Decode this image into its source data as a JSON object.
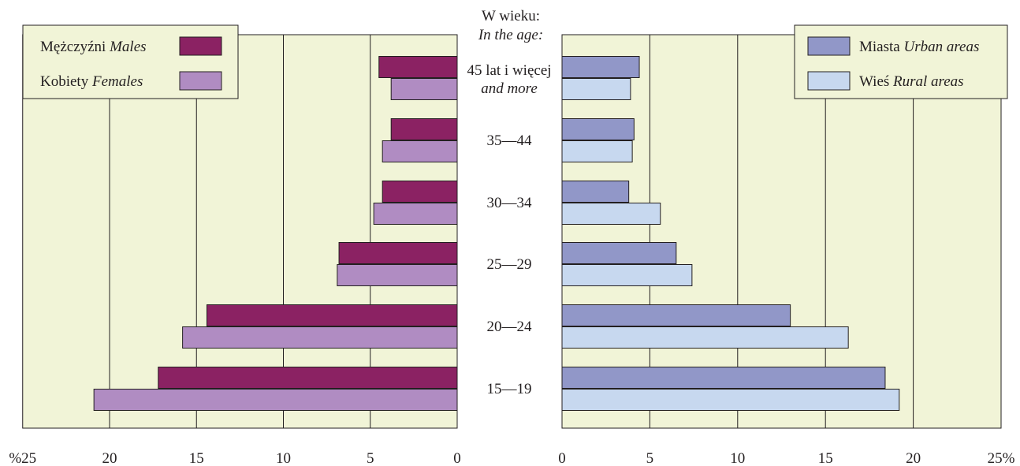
{
  "chart_data": {
    "type": "bar",
    "orientation": "horizontal",
    "age_header": {
      "line1": "W wieku:",
      "line2": "In the age:"
    },
    "categories": [
      {
        "line1": "45 lat i więcej",
        "line2": "and more"
      },
      {
        "line1": "35—44",
        "line2": ""
      },
      {
        "line1": "30—34",
        "line2": ""
      },
      {
        "line1": "25—29",
        "line2": ""
      },
      {
        "line1": "20—24",
        "line2": ""
      },
      {
        "line1": "15—19",
        "line2": ""
      }
    ],
    "panels": [
      {
        "side": "left",
        "ticks": [
          "%25",
          "20",
          "15",
          "10",
          "5",
          "0"
        ],
        "tick_values": [
          25,
          20,
          15,
          10,
          5,
          0
        ],
        "xlim": [
          0,
          25
        ],
        "legend_position": "top-left",
        "series": [
          {
            "name_pl": "Mężczyźni",
            "name_en": "Males",
            "color": "#8b2263",
            "values": [
              4.5,
              3.8,
              4.3,
              6.8,
              14.4,
              17.2
            ]
          },
          {
            "name_pl": "Kobiety",
            "name_en": "Females",
            "color": "#b08cc2",
            "values": [
              3.8,
              4.3,
              4.8,
              6.9,
              15.8,
              20.9
            ]
          }
        ]
      },
      {
        "side": "right",
        "ticks": [
          "0",
          "5",
          "10",
          "15",
          "20",
          "25%"
        ],
        "tick_values": [
          0,
          5,
          10,
          15,
          20,
          25
        ],
        "xlim": [
          0,
          25
        ],
        "legend_position": "top-right",
        "series": [
          {
            "name_pl": "Miasta",
            "name_en": "Urban areas",
            "color": "#9197c8",
            "values": [
              4.4,
              4.1,
              3.8,
              6.5,
              13.0,
              18.4
            ]
          },
          {
            "name_pl": "Wieś",
            "name_en": "Rural areas",
            "color": "#c7d8ef",
            "values": [
              3.9,
              4.0,
              5.6,
              7.4,
              16.3,
              19.2
            ]
          }
        ]
      }
    ],
    "grid": true,
    "colors": {
      "panel_bg": "#f1f4d7",
      "grid": "#231f20"
    }
  }
}
